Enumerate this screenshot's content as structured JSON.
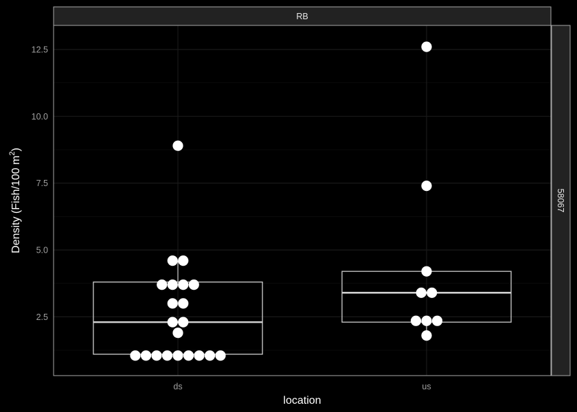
{
  "chart_data": {
    "type": "boxplot",
    "facet_top": "RB",
    "facet_right": "58067",
    "xlabel": "location",
    "ylabel_main": "Density (Fish/100 m",
    "ylabel_sup": "2",
    "ylabel_close": ")",
    "ylim": [
      0.3,
      13.4
    ],
    "yticks": [
      2.5,
      5.0,
      7.5,
      10.0,
      12.5
    ],
    "ytick_labels": [
      "2.5",
      "5.0",
      "7.5",
      "10.0",
      "12.5"
    ],
    "categories": [
      "ds",
      "us"
    ],
    "boxes": [
      {
        "category": "ds",
        "q1": 1.1,
        "median": 2.3,
        "q3": 3.8,
        "whisker_low": 1.05,
        "whisker_high": 4.6
      },
      {
        "category": "us",
        "q1": 2.3,
        "median": 3.4,
        "q3": 4.2,
        "whisker_low": 1.8,
        "whisker_high": 4.2
      }
    ],
    "points": {
      "ds": [
        {
          "y": 8.9,
          "count": 1
        },
        {
          "y": 4.6,
          "count": 2
        },
        {
          "y": 3.7,
          "count": 4
        },
        {
          "y": 3.0,
          "count": 2
        },
        {
          "y": 2.3,
          "count": 2
        },
        {
          "y": 1.9,
          "count": 1
        },
        {
          "y": 1.05,
          "count": 9
        }
      ],
      "us": [
        {
          "y": 12.6,
          "count": 1
        },
        {
          "y": 7.4,
          "count": 1
        },
        {
          "y": 4.2,
          "count": 1
        },
        {
          "y": 3.4,
          "count": 2
        },
        {
          "y": 2.35,
          "count": 3
        },
        {
          "y": 1.8,
          "count": 1
        }
      ]
    },
    "colors": {
      "background": "#000000",
      "strip_fill": "#222222",
      "points": "#ffffff",
      "box_stroke": "#d0d0d0"
    }
  }
}
